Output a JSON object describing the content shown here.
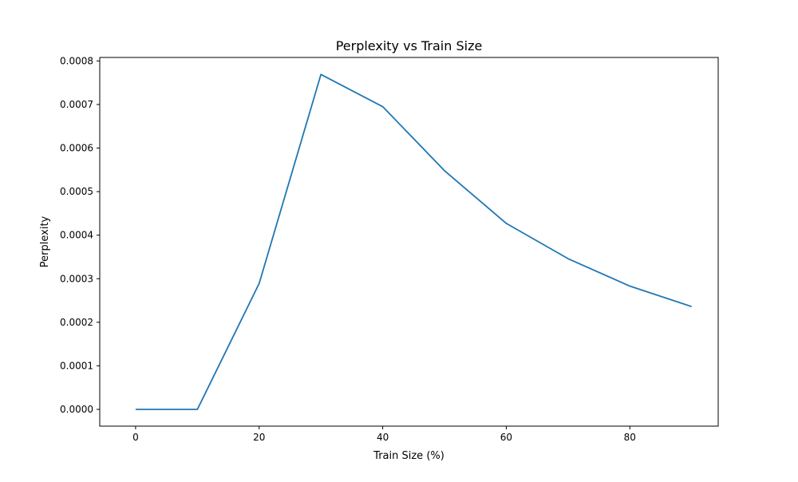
{
  "chart_data": {
    "type": "line",
    "title": "Perplexity vs Train Size",
    "xlabel": "Train Size (%)",
    "ylabel": "Perplexity",
    "xlim": [
      -5.8,
      94.3
    ],
    "ylim": [
      -3.85e-05,
      0.000808
    ],
    "x_ticks": [
      0,
      20,
      40,
      60,
      80
    ],
    "x_tick_labels": [
      "0",
      "20",
      "40",
      "60",
      "80"
    ],
    "y_ticks": [
      0,
      0.0001,
      0.0002,
      0.0003,
      0.0004,
      0.0005,
      0.0006,
      0.0007,
      0.0008
    ],
    "y_tick_labels": [
      "0.0000",
      "0.0001",
      "0.0002",
      "0.0003",
      "0.0004",
      "0.0005",
      "0.0006",
      "0.0007",
      "0.0008"
    ],
    "grid": false,
    "legend": "none",
    "x": [
      0,
      10,
      20,
      30,
      40,
      50,
      60,
      70,
      80,
      90
    ],
    "series": [
      {
        "values": [
          0.0,
          0.0,
          0.000289,
          0.000769,
          0.000695,
          0.000548,
          0.000427,
          0.000346,
          0.000283,
          0.000236
        ],
        "color": "#1f77b4"
      }
    ]
  }
}
